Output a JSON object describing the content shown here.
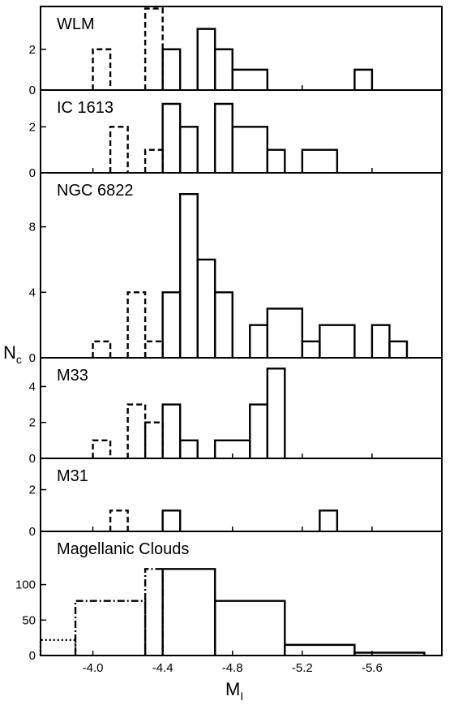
{
  "chart_data": {
    "type": "bar",
    "xlabel": "M",
    "xlabel_subscript": "I",
    "ylabel": "N",
    "ylabel_subscript": "c",
    "xlim": [
      -3.7,
      -6.0
    ],
    "xticks": [
      -4.0,
      -4.4,
      -4.8,
      -5.2,
      -5.6
    ],
    "xtick_labels": [
      "-4.0",
      "-4.4",
      "-4.8",
      "-5.2",
      "-5.6"
    ],
    "panels": [
      {
        "name": "WLM",
        "ylim": [
          0,
          4.1
        ],
        "yticks": [
          0,
          2
        ],
        "dashed_bins": [
          {
            "x0": -4.0,
            "x1": -4.1,
            "y": 2
          },
          {
            "x0": -4.3,
            "x1": -4.4,
            "y": 4
          }
        ],
        "solid_bins": [
          {
            "x0": -4.4,
            "x1": -4.5,
            "y": 2
          },
          {
            "x0": -4.6,
            "x1": -4.7,
            "y": 3
          },
          {
            "x0": -4.7,
            "x1": -4.8,
            "y": 2
          },
          {
            "x0": -4.8,
            "x1": -5.0,
            "y": 1
          },
          {
            "x0": -5.5,
            "x1": -5.6,
            "y": 1
          }
        ]
      },
      {
        "name": "IC 1613",
        "ylim": [
          0,
          3.6
        ],
        "yticks": [
          0,
          2
        ],
        "dashed_bins": [
          {
            "x0": -4.1,
            "x1": -4.2,
            "y": 2
          },
          {
            "x0": -4.3,
            "x1": -4.4,
            "y": 1
          }
        ],
        "solid_bins": [
          {
            "x0": -4.4,
            "x1": -4.5,
            "y": 3
          },
          {
            "x0": -4.5,
            "x1": -4.6,
            "y": 2
          },
          {
            "x0": -4.7,
            "x1": -4.8,
            "y": 3
          },
          {
            "x0": -4.8,
            "x1": -5.0,
            "y": 2
          },
          {
            "x0": -5.0,
            "x1": -5.1,
            "y": 1
          },
          {
            "x0": -5.2,
            "x1": -5.4,
            "y": 1
          }
        ]
      },
      {
        "name": "NGC 6822",
        "ylim": [
          0,
          11.3
        ],
        "yticks": [
          0,
          4,
          8
        ],
        "dashed_bins": [
          {
            "x0": -4.0,
            "x1": -4.1,
            "y": 1
          },
          {
            "x0": -4.2,
            "x1": -4.3,
            "y": 4
          },
          {
            "x0": -4.3,
            "x1": -4.4,
            "y": 1
          }
        ],
        "solid_bins": [
          {
            "x0": -4.4,
            "x1": -4.5,
            "y": 4
          },
          {
            "x0": -4.5,
            "x1": -4.6,
            "y": 10
          },
          {
            "x0": -4.6,
            "x1": -4.7,
            "y": 6
          },
          {
            "x0": -4.7,
            "x1": -4.8,
            "y": 4
          },
          {
            "x0": -4.9,
            "x1": -5.0,
            "y": 2
          },
          {
            "x0": -5.0,
            "x1": -5.2,
            "y": 3
          },
          {
            "x0": -5.2,
            "x1": -5.3,
            "y": 1
          },
          {
            "x0": -5.3,
            "x1": -5.5,
            "y": 2
          },
          {
            "x0": -5.6,
            "x1": -5.7,
            "y": 2
          },
          {
            "x0": -5.7,
            "x1": -5.8,
            "y": 1
          }
        ]
      },
      {
        "name": "M33",
        "ylim": [
          0,
          5.6
        ],
        "yticks": [
          0,
          2,
          4
        ],
        "dashed_bins": [
          {
            "x0": -4.0,
            "x1": -4.1,
            "y": 1
          },
          {
            "x0": -4.2,
            "x1": -4.3,
            "y": 3
          },
          {
            "x0": -4.3,
            "x1": -4.4,
            "y": 2
          }
        ],
        "solid_bins": [
          {
            "x0": -4.4,
            "x1": -4.5,
            "y": 3
          },
          {
            "x0": -4.5,
            "x1": -4.6,
            "y": 1
          },
          {
            "x0": -4.7,
            "x1": -4.9,
            "y": 1
          },
          {
            "x0": -4.9,
            "x1": -5.0,
            "y": 3
          },
          {
            "x0": -5.0,
            "x1": -5.1,
            "y": 5
          }
        ]
      },
      {
        "name": "M31",
        "ylim": [
          0,
          3.5
        ],
        "yticks": [
          0,
          2
        ],
        "dashed_bins": [
          {
            "x0": -4.1,
            "x1": -4.2,
            "y": 1
          }
        ],
        "solid_bins": [
          {
            "x0": -4.4,
            "x1": -4.5,
            "y": 1
          },
          {
            "x0": -5.3,
            "x1": -5.4,
            "y": 1
          }
        ]
      },
      {
        "name": "Magellanic Clouds",
        "ylim": [
          0,
          175
        ],
        "yticks": [
          0,
          50,
          100
        ],
        "dotted_bins": [
          {
            "x0": -3.7,
            "x1": -3.9,
            "y": 22
          }
        ],
        "dashdot_bins": [
          {
            "x0": -3.9,
            "x1": -4.3,
            "y": 77
          },
          {
            "x0": -4.3,
            "x1": -4.4,
            "y": 122
          }
        ],
        "solid_bins": [
          {
            "x0": -4.4,
            "x1": -4.7,
            "y": 122
          },
          {
            "x0": -4.7,
            "x1": -5.1,
            "y": 77
          },
          {
            "x0": -5.1,
            "x1": -5.5,
            "y": 15
          },
          {
            "x0": -5.5,
            "x1": -5.9,
            "y": 4
          }
        ]
      }
    ]
  }
}
